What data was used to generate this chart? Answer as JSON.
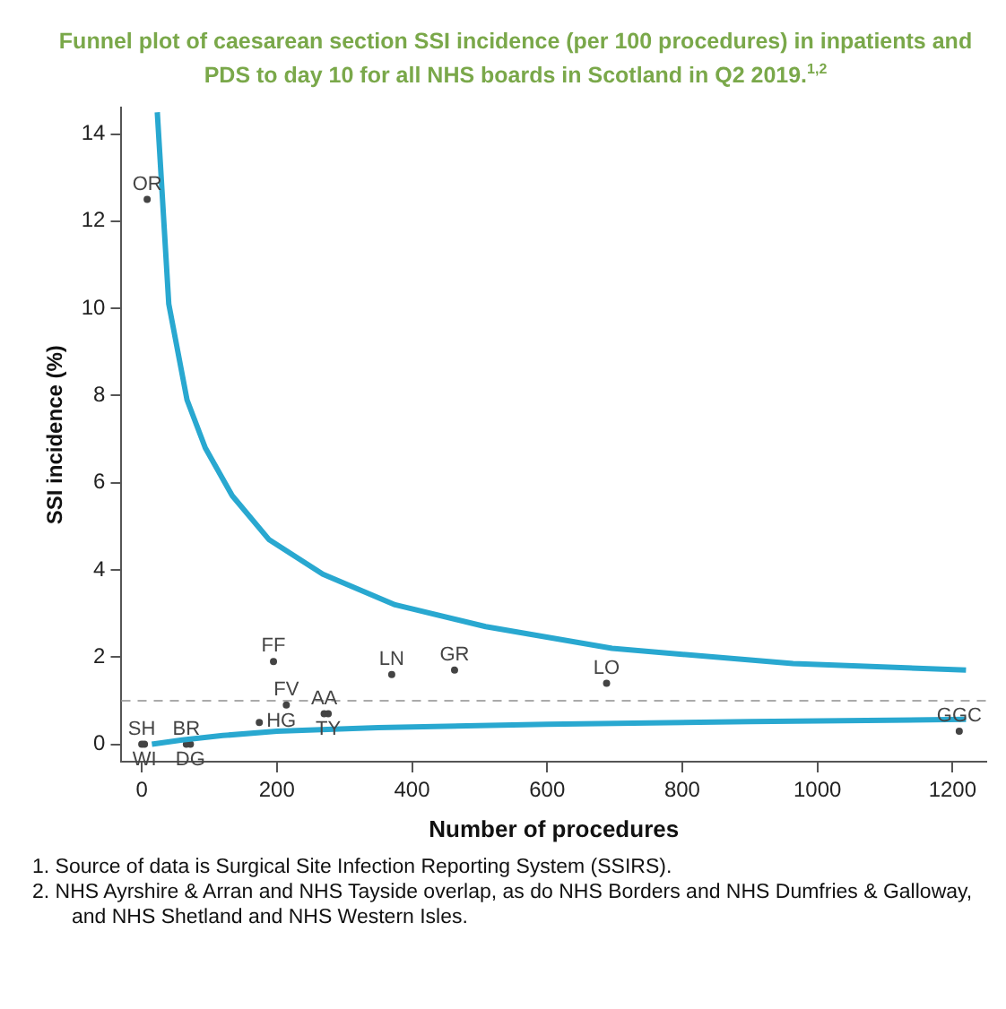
{
  "chart_data": {
    "type": "scatter",
    "title": "Funnel plot of caesarean section SSI incidence (per 100 procedures) in inpatients and PDS to day 10 for all NHS boards in Scotland in Q2 2019.$^{1,2}$",
    "xlabel": "Number of procedures",
    "ylabel": "SSI incidence (%)",
    "xlim": [
      -30,
      1250
    ],
    "ylim": [
      -0.4,
      14.6
    ],
    "xticks": [
      0,
      200,
      400,
      600,
      800,
      1000,
      1200
    ],
    "yticks": [
      0,
      2,
      4,
      6,
      8,
      10,
      12,
      14
    ],
    "grid": false,
    "legend": false,
    "marker": "circle",
    "series": [
      {
        "type": "line",
        "marker": "none",
        "color": "#29a8d0",
        "x": [
          23,
          40,
          67,
          94,
          134,
          188,
          268,
          375,
          509,
          696,
          964,
          1220
        ],
        "values": [
          14.5,
          10.1,
          7.9,
          6.8,
          5.7,
          4.7,
          3.9,
          3.2,
          2.7,
          2.2,
          1.85,
          1.7
        ]
      },
      {
        "type": "line",
        "marker": "none",
        "color": "#29a8d0",
        "x": [
          15,
          60,
          120,
          200,
          350,
          600,
          900,
          1220
        ],
        "values": [
          0,
          0.1,
          0.2,
          0.3,
          0.38,
          0.46,
          0.52,
          0.57
        ]
      },
      {
        "name": "OR",
        "color": "#444444",
        "x": [
          8
        ],
        "values": [
          12.5
        ]
      },
      {
        "name": "FF",
        "color": "#444444",
        "x": [
          195
        ],
        "values": [
          1.9
        ]
      },
      {
        "name": "LN",
        "color": "#444444",
        "x": [
          370
        ],
        "values": [
          1.6
        ]
      },
      {
        "name": "GR",
        "color": "#444444",
        "x": [
          463
        ],
        "values": [
          1.7
        ]
      },
      {
        "name": "LO",
        "color": "#444444",
        "x": [
          688
        ],
        "values": [
          1.4
        ]
      },
      {
        "name": "FV",
        "color": "#444444",
        "x": [
          214
        ],
        "values": [
          0.9
        ]
      },
      {
        "name": "HG",
        "color": "#444444",
        "x": [
          174
        ],
        "values": [
          0.5
        ]
      },
      {
        "name": "AA",
        "color": "#444444",
        "x": [
          270
        ],
        "values": [
          0.7
        ]
      },
      {
        "name": "TY",
        "color": "#444444",
        "x": [
          276
        ],
        "values": [
          0.7
        ]
      },
      {
        "name": "SH",
        "color": "#444444",
        "x": [
          0
        ],
        "values": [
          0
        ]
      },
      {
        "name": "WI",
        "color": "#444444",
        "x": [
          4
        ],
        "values": [
          0
        ]
      },
      {
        "name": "BR",
        "color": "#444444",
        "x": [
          66
        ],
        "values": [
          0
        ]
      },
      {
        "name": "DG",
        "color": "#444444",
        "x": [
          72
        ],
        "values": [
          0
        ]
      },
      {
        "name": "GGC",
        "color": "#444444",
        "x": [
          1210
        ],
        "values": [
          0.3
        ]
      }
    ],
    "ref_lines": [
      {
        "axis": "y",
        "value": 1,
        "color": "#aaaaaa",
        "line_style": "dashed"
      }
    ],
    "annotations": [
      "1. Source of data is Surgical Site Infection Reporting System (SSIRS).",
      "2. NHS Ayrshire & Arran and NHS Tayside overlap, as do NHS Borders and NHS Dumfries & Galloway, and NHS Shetland and NHS Western Isles."
    ]
  }
}
